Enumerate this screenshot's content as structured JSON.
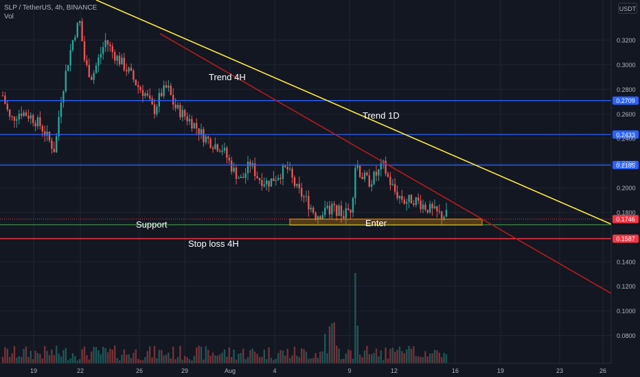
{
  "header": {
    "symbol_line": "SLP / TetherUS, 4h, BINANCE",
    "indicator": "Vol",
    "currency": "USDT"
  },
  "chart_data": {
    "type": "candlestick",
    "title": "SLP / TetherUS, 4h, BINANCE",
    "ylim": [
      0.0575,
      0.347
    ],
    "y_ticks": [
      "0.3200",
      "0.3000",
      "0.2800",
      "0.2600",
      "0.2400",
      "0.2200",
      "0.2000",
      "0.1800",
      "0.1400",
      "0.1200",
      "0.1000",
      "0.0800"
    ],
    "x_ticks": [
      "19",
      "22",
      "26",
      "29",
      "Aug",
      "4",
      "9",
      "12",
      "16",
      "19",
      "23",
      "26"
    ],
    "price_levels": [
      {
        "label": "0.2709",
        "value": 0.2709,
        "color": "#2962ff"
      },
      {
        "label": "0.2433",
        "value": 0.2433,
        "color": "#2962ff"
      },
      {
        "label": "0.2185",
        "value": 0.2185,
        "color": "#2962ff"
      },
      {
        "label": "0.1746",
        "value": 0.1746,
        "color": "#f23645"
      },
      {
        "label": "0.1587",
        "value": 0.1587,
        "color": "#f23645"
      }
    ],
    "annotations": [
      {
        "text": "Trend 4H"
      },
      {
        "text": "Trend 1D"
      },
      {
        "text": "Support"
      },
      {
        "text": "Enter"
      },
      {
        "text": "Stop loss 4H"
      }
    ],
    "colors": {
      "up": "#26a69a",
      "down": "#ef5350",
      "trend_1d": "#ffeb3b",
      "trend_4h": "#b71c1c",
      "support": "#4caf50",
      "enter": "#ff9800"
    }
  }
}
